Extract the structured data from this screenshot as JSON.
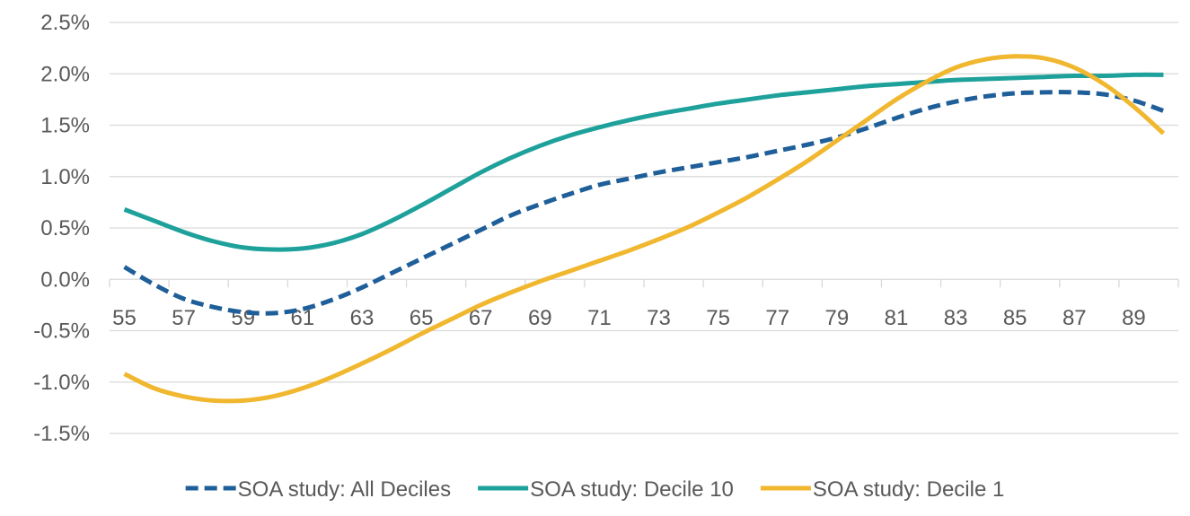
{
  "chart_data": {
    "type": "line",
    "title": "",
    "xlabel": "",
    "ylabel": "",
    "x": [
      55,
      56,
      57,
      58,
      59,
      60,
      61,
      62,
      63,
      64,
      65,
      66,
      67,
      68,
      69,
      70,
      71,
      72,
      73,
      74,
      75,
      76,
      77,
      78,
      79,
      80,
      81,
      82,
      83,
      84,
      85,
      86,
      87,
      88,
      89,
      90
    ],
    "x_tick_labels": [
      "55",
      "57",
      "59",
      "61",
      "63",
      "65",
      "67",
      "69",
      "71",
      "73",
      "75",
      "77",
      "79",
      "81",
      "83",
      "85",
      "87",
      "89"
    ],
    "xlim": [
      54.5,
      90.5
    ],
    "y_tick_labels": [
      "2.5%",
      "2.0%",
      "1.5%",
      "1.0%",
      "0.5%",
      "0.0%",
      "-0.5%",
      "-1.0%",
      "-1.5%"
    ],
    "ylim": [
      -1.5,
      2.5
    ],
    "y_unit": "%",
    "grid": "horizontal",
    "legend_position": "bottom",
    "series": [
      {
        "name": "SOA study: All Deciles",
        "color": "#1f5f99",
        "style": "dashed",
        "values": [
          0.12,
          -0.05,
          -0.19,
          -0.27,
          -0.32,
          -0.33,
          -0.29,
          -0.2,
          -0.08,
          0.06,
          0.2,
          0.34,
          0.48,
          0.62,
          0.73,
          0.83,
          0.92,
          0.98,
          1.04,
          1.09,
          1.14,
          1.19,
          1.25,
          1.31,
          1.38,
          1.47,
          1.57,
          1.66,
          1.73,
          1.78,
          1.81,
          1.82,
          1.82,
          1.8,
          1.74,
          1.64
        ]
      },
      {
        "name": "SOA study: Decile 10",
        "color": "#1fa19b",
        "style": "solid",
        "values": [
          0.68,
          0.57,
          0.46,
          0.37,
          0.31,
          0.29,
          0.3,
          0.35,
          0.44,
          0.57,
          0.72,
          0.88,
          1.04,
          1.18,
          1.3,
          1.4,
          1.48,
          1.55,
          1.61,
          1.66,
          1.71,
          1.75,
          1.79,
          1.82,
          1.85,
          1.88,
          1.9,
          1.92,
          1.94,
          1.95,
          1.96,
          1.97,
          1.98,
          1.98,
          1.99,
          1.99
        ]
      },
      {
        "name": "SOA study: Decile 1",
        "color": "#f0b72f",
        "style": "solid",
        "values": [
          -0.92,
          -1.06,
          -1.14,
          -1.18,
          -1.18,
          -1.14,
          -1.06,
          -0.95,
          -0.82,
          -0.68,
          -0.53,
          -0.39,
          -0.25,
          -0.13,
          -0.02,
          0.08,
          0.18,
          0.28,
          0.39,
          0.51,
          0.65,
          0.8,
          0.97,
          1.15,
          1.35,
          1.55,
          1.75,
          1.92,
          2.06,
          2.14,
          2.17,
          2.15,
          2.06,
          1.9,
          1.68,
          1.42
        ]
      }
    ]
  }
}
